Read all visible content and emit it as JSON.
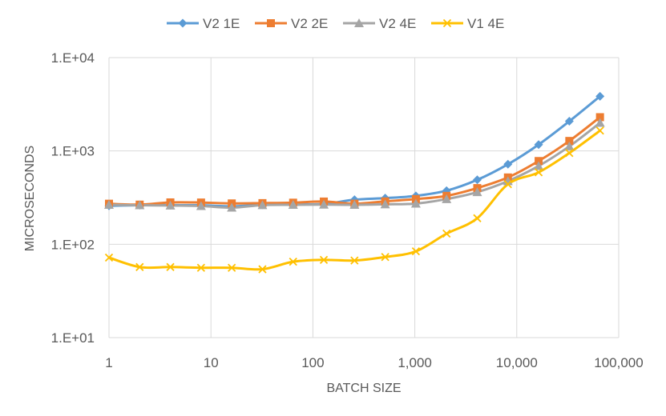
{
  "chart_data": {
    "type": "line",
    "title": "",
    "xlabel": "BATCH SIZE",
    "ylabel": "MICROSECONDS",
    "xscale": "log10",
    "yscale": "log10",
    "xlim": [
      1,
      100000
    ],
    "ylim": [
      10,
      10000
    ],
    "x_ticks": [
      1,
      10,
      100,
      1000,
      10000,
      100000
    ],
    "x_tick_labels": [
      "1",
      "10",
      "100",
      "1,000",
      "10,000",
      "100,000"
    ],
    "y_ticks": [
      10,
      100,
      1000,
      10000
    ],
    "y_tick_labels": [
      "1.E+01",
      "1.E+02",
      "1.E+03",
      "1.E+04"
    ],
    "grid": true,
    "legend_position": "top",
    "x": [
      1,
      2,
      4,
      8,
      16,
      32,
      64,
      128,
      256,
      512,
      1024,
      2048,
      4096,
      8192,
      16384,
      32768,
      65536
    ],
    "series": [
      {
        "name": "V2 1E",
        "color": "#5B9BD5",
        "marker": "diamond",
        "values": [
          258,
          262,
          262,
          262,
          255,
          265,
          268,
          270,
          300,
          312,
          330,
          375,
          490,
          720,
          1170,
          2080,
          3850
        ]
      },
      {
        "name": "V2 2E",
        "color": "#ED7D31",
        "marker": "square",
        "values": [
          272,
          266,
          281,
          280,
          274,
          276,
          279,
          287,
          272,
          288,
          305,
          330,
          400,
          520,
          780,
          1280,
          2300
        ]
      },
      {
        "name": "V2 4E",
        "color": "#A5A5A5",
        "marker": "triangle",
        "values": [
          265,
          262,
          260,
          257,
          247,
          263,
          265,
          266,
          265,
          268,
          273,
          305,
          362,
          475,
          690,
          1120,
          2000
        ]
      },
      {
        "name": "V1 4E",
        "color": "#FFC000",
        "marker": "x",
        "values": [
          72,
          57,
          57,
          56,
          56,
          54,
          65,
          68,
          67,
          73,
          84,
          130,
          190,
          440,
          590,
          950,
          1650
        ]
      }
    ]
  }
}
